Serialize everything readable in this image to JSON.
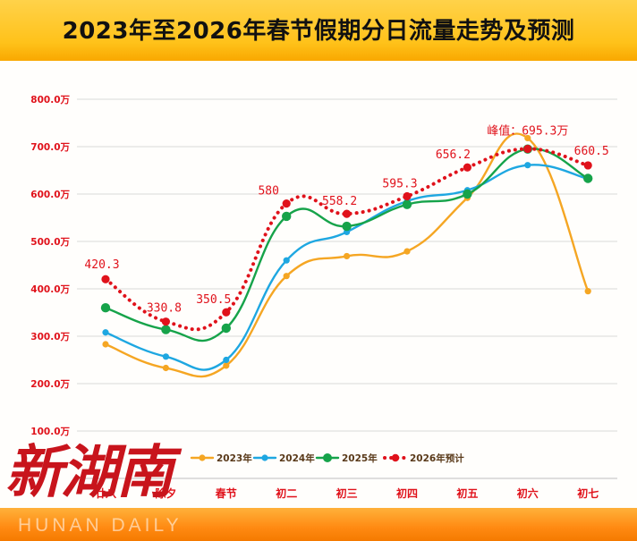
{
  "header": {
    "title": "2023年至2026年春节假期分日流量走势及预测"
  },
  "chart_data": {
    "type": "line",
    "title": "2023年至2026年春节假期分日流量走势及预测",
    "categories": [
      "廿八",
      "除夕",
      "春节",
      "初二",
      "初三",
      "初四",
      "初五",
      "初六",
      "初七"
    ],
    "y_tick_labels": [
      "100.0万",
      "200.0万",
      "300.0万",
      "400.0万",
      "500.0万",
      "600.0万",
      "700.0万",
      "800.0万"
    ],
    "y_ticks": [
      100,
      200,
      300,
      400,
      500,
      600,
      700,
      800
    ],
    "ylim": [
      0,
      800
    ],
    "series": [
      {
        "name": "2023年",
        "color": "#f5a623",
        "style": "solid",
        "values": [
          283,
          233,
          238,
          427,
          469,
          479,
          592,
          718,
          395
        ]
      },
      {
        "name": "2024年",
        "color": "#1ea7e1",
        "style": "solid",
        "values": [
          308,
          257,
          250,
          460,
          520,
          585,
          608,
          661,
          632
        ]
      },
      {
        "name": "2025年",
        "color": "#16a34a",
        "style": "solid",
        "values": [
          360,
          314,
          317,
          553,
          532,
          578,
          600,
          695,
          633
        ]
      },
      {
        "name": "2026年预计",
        "color": "#e0121b",
        "style": "dotted",
        "values": [
          420.3,
          330.8,
          350.5,
          580,
          558.2,
          595.3,
          656.2,
          695.3,
          660.5
        ]
      }
    ],
    "data_labels": [
      "420.3",
      "330.8",
      "350.5",
      "580",
      "558.2",
      "595.3",
      "656.2",
      "峰值：695.3万",
      "660.5"
    ],
    "legend": [
      "2023年",
      "2024年",
      "2025年",
      "2026年预计"
    ]
  },
  "watermark": {
    "text": "新湖南",
    "subtext": "HUNAN DAILY"
  }
}
